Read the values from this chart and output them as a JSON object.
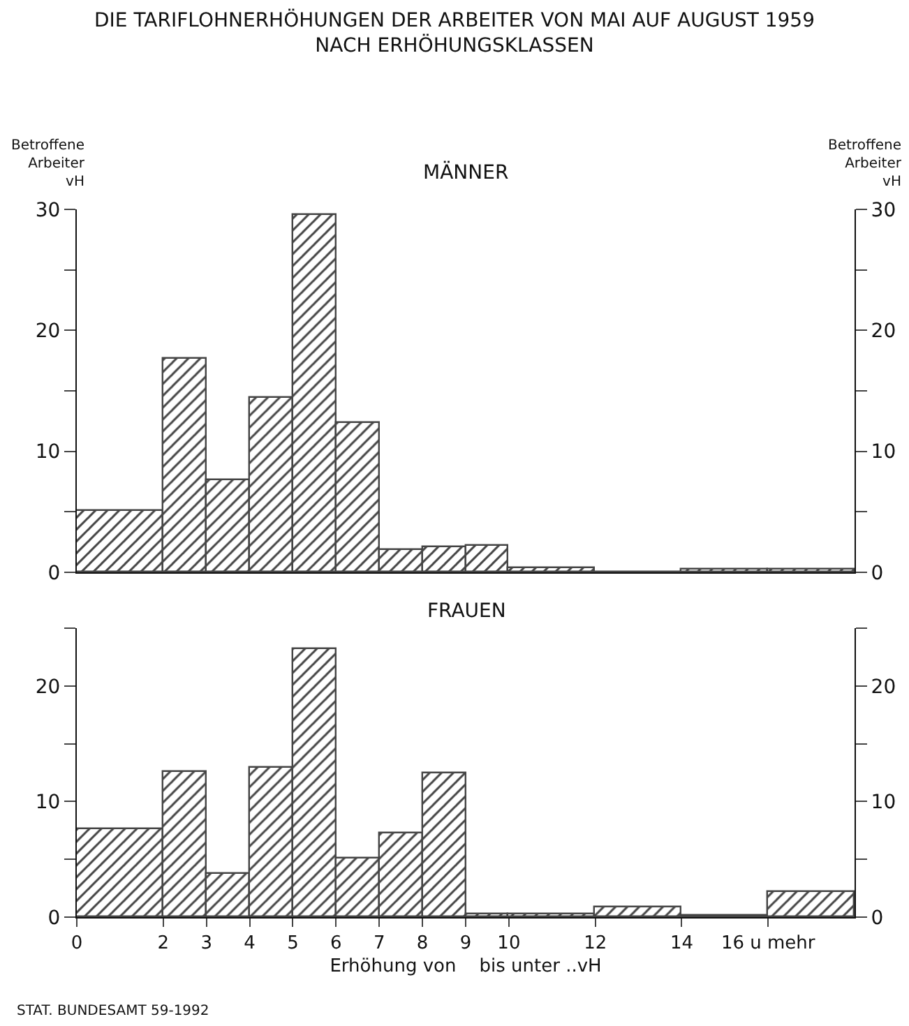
{
  "chart_data": [
    {
      "type": "histogram",
      "title": "DIE TARIFLOHNERHÖHUNGEN DER ARBEITER VON MAI AUF AUGUST 1959\nNACH ERHÖHUNGSKLASSEN",
      "subtitle": "MÄNNER",
      "ylabel": "Betroffene\nArbeiter\nvH",
      "y2label": "Betroffene\nArbeiter\nvH",
      "bins": [
        0,
        2,
        3,
        4,
        5,
        6,
        7,
        8,
        9,
        10,
        12,
        14,
        16,
        18
      ],
      "values": [
        5.1,
        17.7,
        7.6,
        14.4,
        29.5,
        12.4,
        1.9,
        2.1,
        2.2,
        0.3,
        0,
        0.2,
        0.2
      ],
      "color": "#444444",
      "xlim": [
        0,
        18
      ],
      "ylim": [
        0,
        30
      ],
      "yticks": [
        0,
        {
          "value": 5,
          "label": null
        },
        10,
        {
          "value": 15,
          "label": null
        },
        20,
        {
          "value": 25,
          "label": null
        },
        30
      ],
      "y2lim": [
        0,
        30
      ],
      "y2ticks": [
        0,
        {
          "value": 5,
          "label": null
        },
        10,
        {
          "value": 15,
          "label": null
        },
        20,
        {
          "value": 25,
          "label": null
        },
        30
      ],
      "tick_labels": "y",
      "grid": false
    },
    {
      "type": "histogram",
      "title": "FRAUEN",
      "xlabel": "Erhöhung von    bis unter ..vH",
      "bins": [
        0,
        2,
        3,
        4,
        5,
        6,
        7,
        8,
        9,
        10,
        12,
        14,
        16,
        18
      ],
      "values": [
        7.6,
        12.6,
        3.7,
        12.9,
        23.2,
        5.1,
        7.3,
        12.5,
        0.2,
        0.2,
        0.8,
        0.1,
        2.2
      ],
      "color": "#444444",
      "xlim": [
        0,
        18
      ],
      "xticks": [
        0,
        2,
        3,
        4,
        5,
        6,
        7,
        8,
        9,
        10,
        12,
        14,
        {
          "value": 16,
          "label": "16 u mehr"
        }
      ],
      "ylim": [
        0,
        25
      ],
      "yticks": [
        0,
        {
          "value": 5,
          "label": null
        },
        10,
        {
          "value": 15,
          "label": null
        },
        20,
        {
          "value": 25,
          "label": null
        }
      ],
      "y2lim": [
        0,
        25
      ],
      "y2ticks": [
        0,
        {
          "value": 5,
          "label": null
        },
        10,
        {
          "value": 15,
          "label": null
        },
        20,
        {
          "value": 25,
          "label": null
        }
      ],
      "annotations": [
        "STAT. BUNDESAMT 59-1992"
      ],
      "grid": false
    }
  ]
}
